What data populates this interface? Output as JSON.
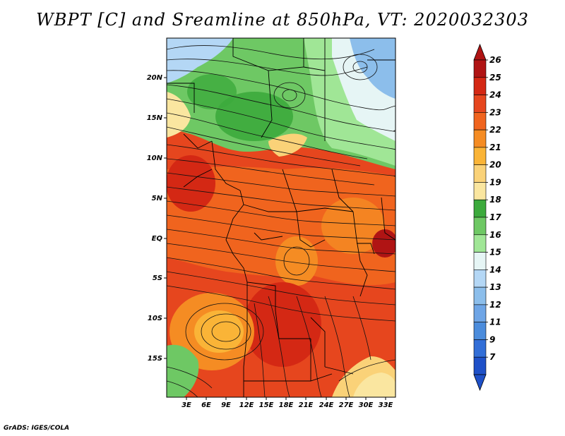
{
  "title": "WBPT [C] and Sreamline at 850hPa, VT: 2020032303",
  "footer": "GrADS: IGES/COLA",
  "map": {
    "lat_labels": [
      "20N",
      "15N",
      "10N",
      "5N",
      "EQ",
      "5S",
      "10S",
      "15S"
    ],
    "lon_labels": [
      "3E",
      "6E",
      "9E",
      "12E",
      "15E",
      "18E",
      "21E",
      "24E",
      "27E",
      "30E",
      "33E"
    ]
  },
  "colorbar": {
    "labels": [
      "26",
      "25",
      "24",
      "23",
      "22",
      "21",
      "20",
      "19",
      "18",
      "17",
      "16",
      "15",
      "14",
      "13",
      "12",
      "11",
      "9",
      "7"
    ],
    "colors": [
      "#b01414",
      "#d42814",
      "#e6461e",
      "#f0641e",
      "#f58c23",
      "#fab437",
      "#fad278",
      "#fae6a0",
      "#3caa3c",
      "#6ec864",
      "#a0e696",
      "#e6f5f5",
      "#b4d7f5",
      "#8cbeeb",
      "#6ea5e6",
      "#4b8cdc",
      "#326ed7",
      "#1e50c8"
    ]
  }
}
